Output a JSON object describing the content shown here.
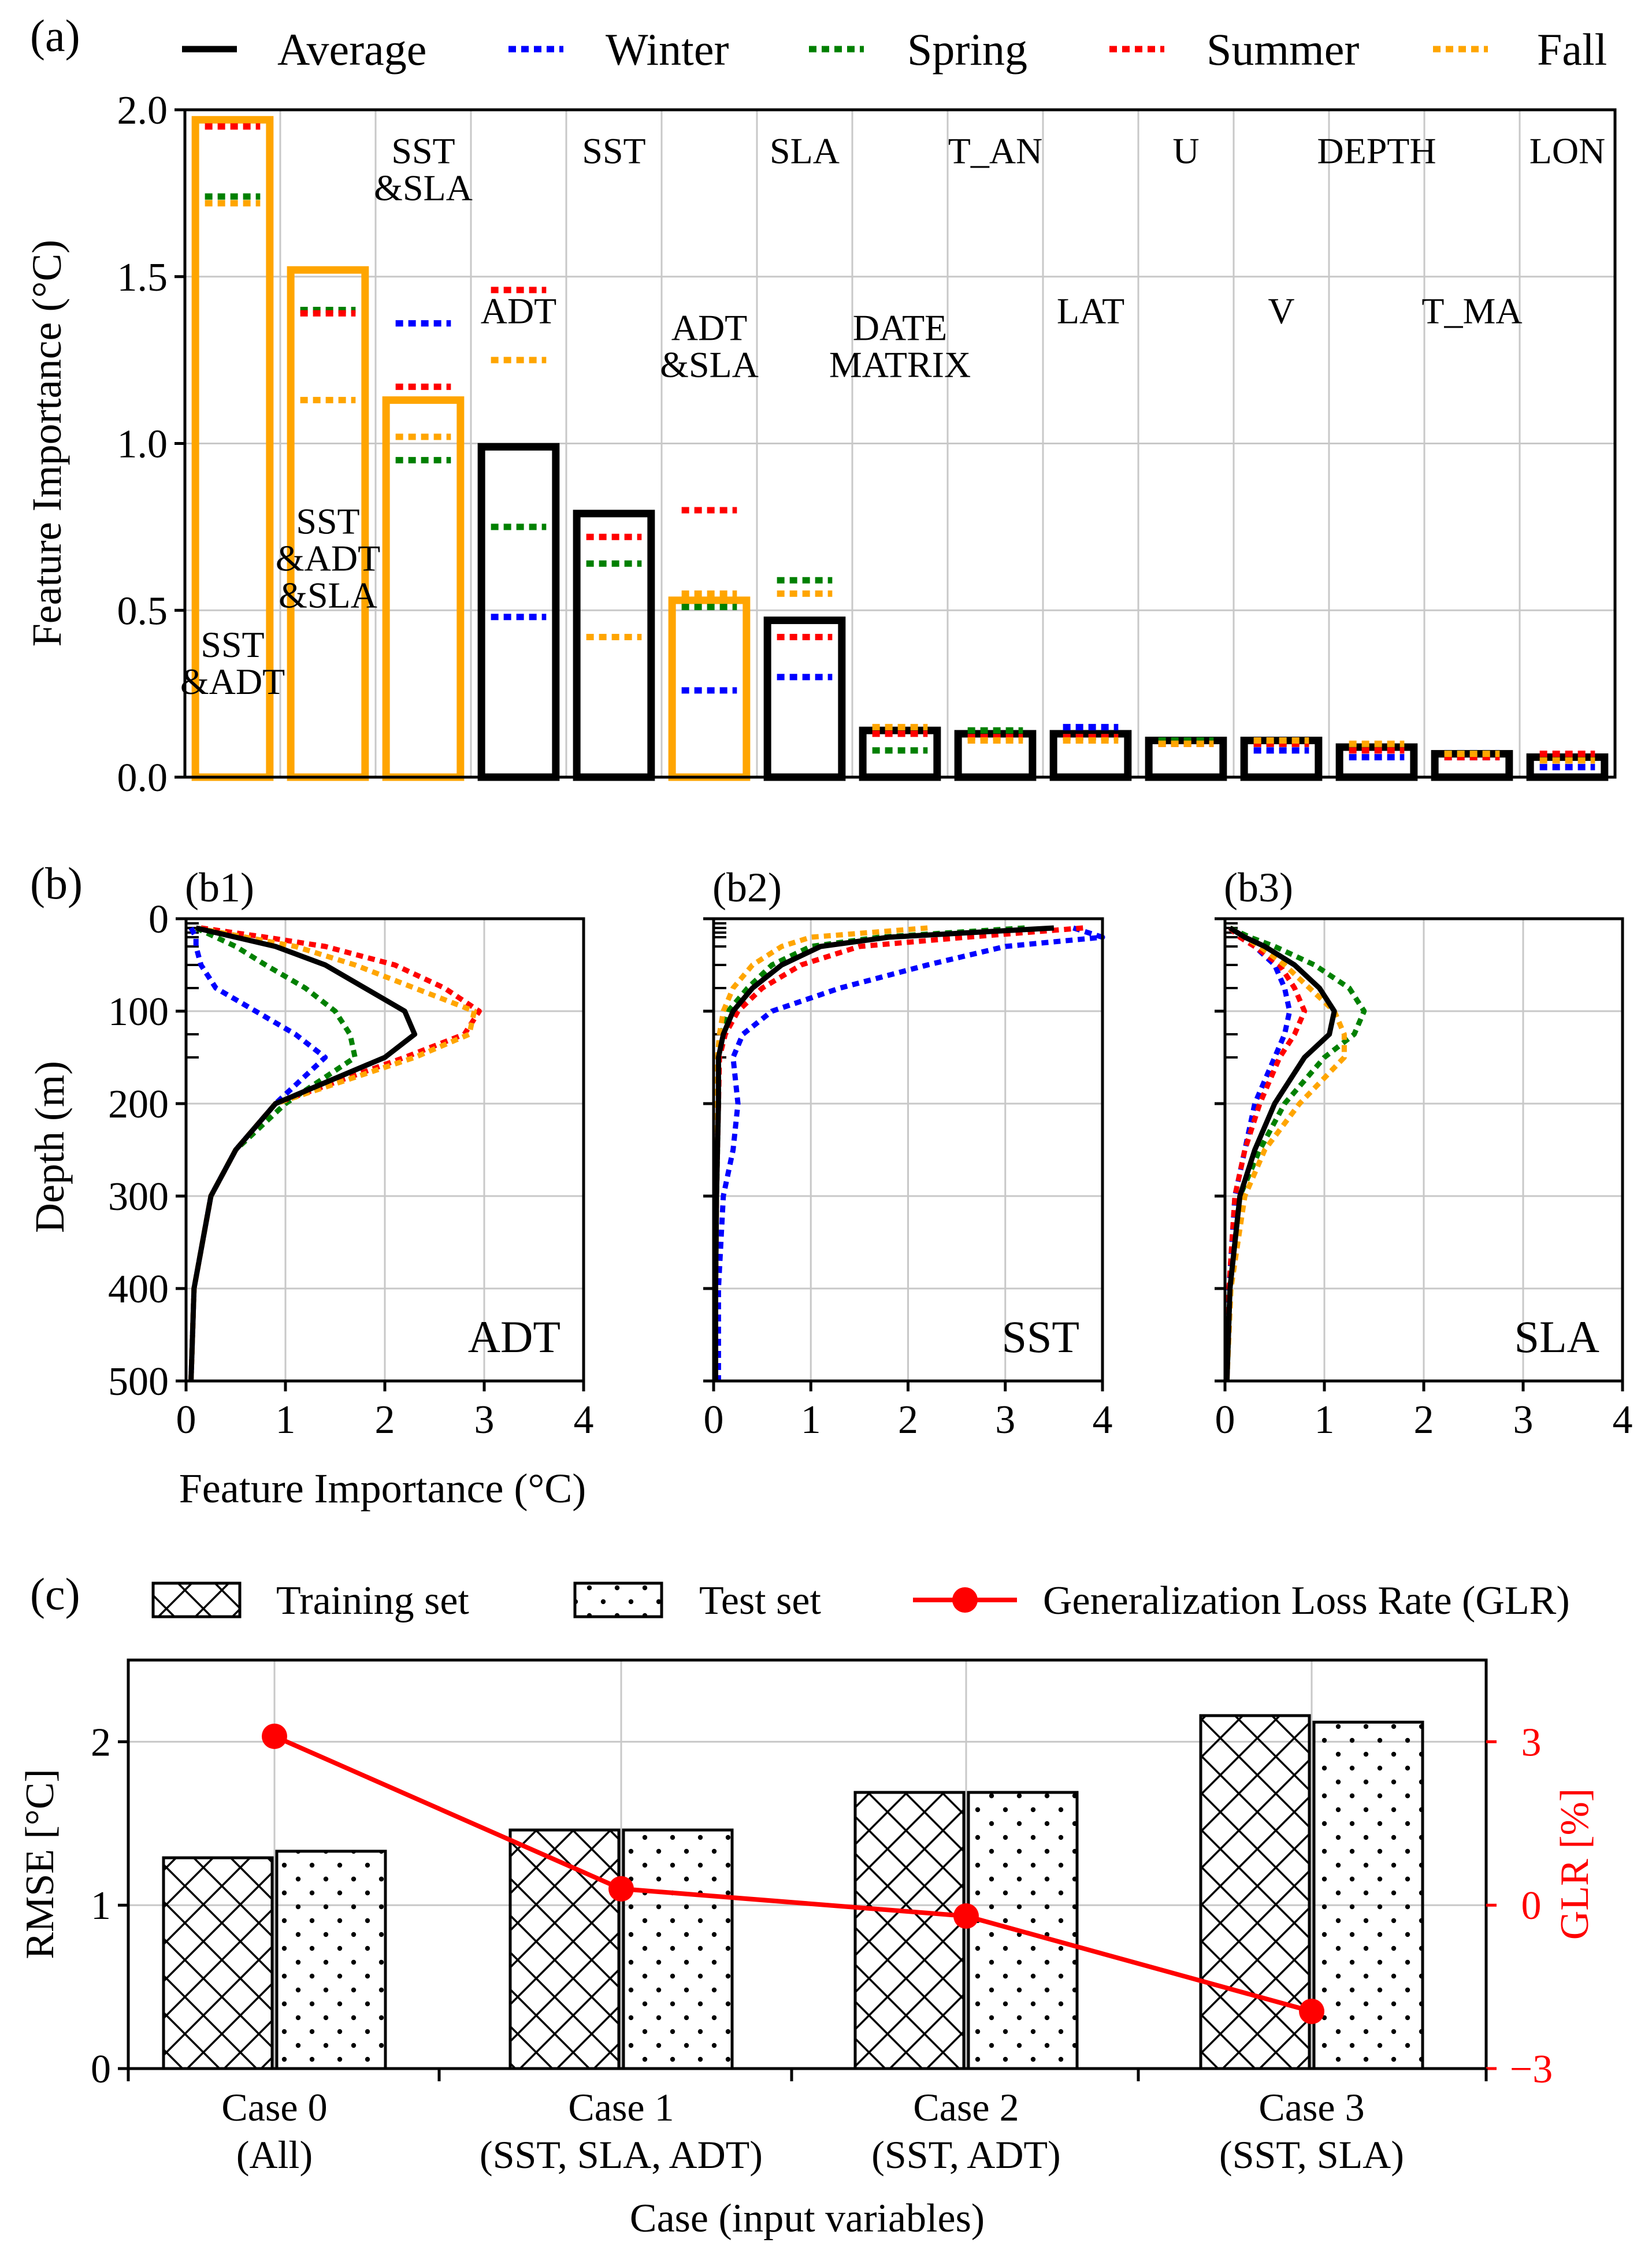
{
  "chart_data": [
    {
      "panel_label": "(a)",
      "type": "bar",
      "ylabel": "Feature Importance (°C)",
      "ylim": [
        0,
        2.0
      ],
      "yticks": [
        "0.0",
        "0.5",
        "1.0",
        "1.5",
        "2.0"
      ],
      "legend": {
        "placement": "top",
        "entries": [
          {
            "name": "Average",
            "color": "#000000",
            "style": "solid"
          },
          {
            "name": "Winter",
            "color": "#0000ff",
            "style": "dotted"
          },
          {
            "name": "Spring",
            "color": "#008000",
            "style": "dotted"
          },
          {
            "name": "Summer",
            "color": "#ff0000",
            "style": "dotted"
          },
          {
            "name": "Fall",
            "color": "#ffa500",
            "style": "dotted"
          }
        ]
      },
      "categories": [
        "SST &ADT",
        "SST &ADT &SLA",
        "SST &SLA",
        "ADT",
        "SST",
        "ADT &SLA",
        "SLA",
        "DATE MATRIX",
        "T_AN",
        "LAT",
        "U",
        "V",
        "DEPTH",
        "T_MA",
        "LON"
      ],
      "bar_edge_colors": [
        "#ffa500",
        "#ffa500",
        "#ffa500",
        "#000000",
        "#000000",
        "#ffa500",
        "#000000",
        "#000000",
        "#000000",
        "#000000",
        "#000000",
        "#000000",
        "#000000",
        "#000000",
        "#000000"
      ],
      "series": [
        {
          "name": "Average",
          "values": [
            1.97,
            1.52,
            1.13,
            0.99,
            0.79,
            0.53,
            0.47,
            0.14,
            0.13,
            0.13,
            0.11,
            0.11,
            0.09,
            0.07,
            0.06
          ]
        },
        {
          "name": "Winter",
          "values": [
            null,
            null,
            1.36,
            0.48,
            null,
            0.26,
            0.3,
            null,
            null,
            0.15,
            null,
            0.08,
            0.06,
            0.06,
            0.03
          ]
        },
        {
          "name": "Spring",
          "values": [
            1.74,
            1.4,
            0.95,
            0.75,
            0.64,
            0.51,
            0.59,
            0.08,
            0.14,
            0.12,
            0.11,
            0.1,
            0.09,
            0.07,
            null
          ]
        },
        {
          "name": "Summer",
          "values": [
            1.95,
            1.39,
            1.17,
            1.46,
            0.72,
            0.8,
            0.42,
            0.13,
            0.12,
            0.12,
            0.1,
            0.1,
            0.08,
            0.06,
            0.07
          ]
        },
        {
          "name": "Fall",
          "values": [
            1.72,
            1.13,
            1.02,
            1.25,
            0.42,
            0.55,
            0.55,
            0.15,
            0.11,
            0.11,
            0.1,
            0.11,
            0.1,
            0.07,
            0.05
          ]
        }
      ],
      "bar_annotations": [
        {
          "lines": [
            "SST",
            "&ADT"
          ],
          "bar": 0,
          "value": 0.36
        },
        {
          "lines": [
            "SST",
            "&ADT",
            "&SLA"
          ],
          "bar": 1,
          "value": 0.73
        },
        {
          "lines": [
            "SST",
            "&SLA"
          ],
          "bar": 2,
          "value": 1.84
        },
        {
          "lines": [
            "ADT"
          ],
          "bar": 3,
          "value": 1.36
        },
        {
          "lines": [
            "SST"
          ],
          "bar": 4,
          "value": 1.84
        },
        {
          "lines": [
            "ADT",
            "&SLA"
          ],
          "bar": 5,
          "value": 1.31
        },
        {
          "lines": [
            "SLA"
          ],
          "bar": 6,
          "value": 1.84
        },
        {
          "lines": [
            "DATE",
            "MATRIX"
          ],
          "bar": 7,
          "value": 1.31
        },
        {
          "lines": [
            "T_AN"
          ],
          "bar": 8,
          "value": 1.84
        },
        {
          "lines": [
            "LAT"
          ],
          "bar": 9,
          "value": 1.36
        },
        {
          "lines": [
            "U"
          ],
          "bar": 10,
          "value": 1.84
        },
        {
          "lines": [
            "V"
          ],
          "bar": 11,
          "value": 1.36
        },
        {
          "lines": [
            "DEPTH"
          ],
          "bar": 12,
          "value": 1.84
        },
        {
          "lines": [
            "T_MA"
          ],
          "bar": 13,
          "value": 1.36
        },
        {
          "lines": [
            "LON"
          ],
          "bar": 14,
          "value": 1.84
        }
      ]
    },
    {
      "panel_label": "(b)",
      "type": "line",
      "xlabel": "Feature Importance (°C)",
      "ylabel": "Depth (m)",
      "xlim": [
        0,
        4
      ],
      "ylim": [
        500,
        0
      ],
      "xticks": [
        0,
        1,
        2,
        3,
        4
      ],
      "yticks": [
        0,
        100,
        200,
        300,
        400,
        500
      ],
      "depths": [
        10,
        20,
        30,
        50,
        75,
        100,
        125,
        150,
        200,
        250,
        300,
        400,
        500
      ],
      "subplots": [
        {
          "label": "(b1)",
          "variable": "ADT",
          "series": [
            {
              "name": "Average",
              "values": [
                0.1,
                0.5,
                0.9,
                1.4,
                1.8,
                2.2,
                2.3,
                2.0,
                0.9,
                0.5,
                0.25,
                0.08,
                0.05
              ]
            },
            {
              "name": "Winter",
              "values": [
                0.05,
                0.1,
                0.1,
                0.15,
                0.3,
                0.7,
                1.1,
                1.4,
                0.9,
                0.5,
                0.25,
                0.08,
                0.05
              ]
            },
            {
              "name": "Spring",
              "values": [
                0.1,
                0.3,
                0.5,
                0.8,
                1.2,
                1.5,
                1.65,
                1.7,
                1.0,
                0.5,
                0.25,
                0.08,
                0.05
              ]
            },
            {
              "name": "Summer",
              "values": [
                0.15,
                0.8,
                1.4,
                2.1,
                2.6,
                2.95,
                2.8,
                2.2,
                0.9,
                0.5,
                0.25,
                0.08,
                0.05
              ]
            },
            {
              "name": "Fall",
              "values": [
                0.1,
                0.6,
                1.1,
                1.7,
                2.3,
                2.9,
                2.85,
                2.3,
                0.9,
                0.5,
                0.25,
                0.08,
                0.05
              ]
            }
          ]
        },
        {
          "label": "(b2)",
          "variable": "SST",
          "series": [
            {
              "name": "Average",
              "values": [
                3.5,
                1.8,
                1.1,
                0.7,
                0.4,
                0.2,
                0.1,
                0.05,
                0.05,
                0.04,
                0.03,
                0.02,
                0.02
              ]
            },
            {
              "name": "Winter",
              "values": [
                3.7,
                4.0,
                3.0,
                2.2,
                1.3,
                0.6,
                0.3,
                0.2,
                0.25,
                0.2,
                0.1,
                0.05,
                0.05
              ]
            },
            {
              "name": "Spring",
              "values": [
                3.2,
                1.7,
                1.0,
                0.6,
                0.35,
                0.15,
                0.08,
                0.05,
                0.05,
                0.04,
                0.03,
                0.02,
                0.02
              ]
            },
            {
              "name": "Summer",
              "values": [
                3.8,
                2.6,
                1.5,
                0.9,
                0.5,
                0.25,
                0.12,
                0.06,
                0.05,
                0.04,
                0.03,
                0.02,
                0.02
              ]
            },
            {
              "name": "Fall",
              "values": [
                2.2,
                1.0,
                0.7,
                0.4,
                0.2,
                0.1,
                0.06,
                0.04,
                0.04,
                0.03,
                0.03,
                0.02,
                0.02
              ]
            }
          ]
        },
        {
          "label": "(b3)",
          "variable": "SLA",
          "series": [
            {
              "name": "Average",
              "values": [
                0.05,
                0.2,
                0.4,
                0.7,
                0.95,
                1.1,
                1.05,
                0.8,
                0.5,
                0.3,
                0.15,
                0.05,
                0.02
              ]
            },
            {
              "name": "Winter",
              "values": [
                0.05,
                0.15,
                0.3,
                0.5,
                0.6,
                0.65,
                0.6,
                0.5,
                0.3,
                0.2,
                0.1,
                0.04,
                0.02
              ]
            },
            {
              "name": "Spring",
              "values": [
                0.05,
                0.25,
                0.5,
                0.9,
                1.25,
                1.4,
                1.3,
                1.0,
                0.6,
                0.35,
                0.15,
                0.05,
                0.02
              ]
            },
            {
              "name": "Summer",
              "values": [
                0.05,
                0.15,
                0.3,
                0.55,
                0.7,
                0.8,
                0.7,
                0.55,
                0.35,
                0.2,
                0.1,
                0.04,
                0.02
              ]
            },
            {
              "name": "Fall",
              "values": [
                0.05,
                0.2,
                0.35,
                0.6,
                0.85,
                1.1,
                1.2,
                1.2,
                0.75,
                0.4,
                0.2,
                0.06,
                0.02
              ]
            }
          ]
        }
      ]
    },
    {
      "panel_label": "(c)",
      "type": "bar",
      "xlabel": "Case (input variables)",
      "ylabel": "RMSE [°C]",
      "ylim": [
        0,
        2.5
      ],
      "yticks": [
        0,
        1,
        2
      ],
      "y2label": "GLR [%]",
      "y2lim": [
        -3,
        4.5
      ],
      "y2ticks": [
        "3",
        "0",
        "−3"
      ],
      "y2_color": "#ff0000",
      "legend": {
        "placement": "top",
        "entries": [
          "Training set",
          "Test set",
          "Generalization Loss Rate (GLR)"
        ]
      },
      "categories": [
        {
          "line1": "Case 0",
          "line2": "(All)"
        },
        {
          "line1": "Case 1",
          "line2": "(SST, SLA, ADT)"
        },
        {
          "line1": "Case 2",
          "line2": "(SST, ADT)"
        },
        {
          "line1": "Case 3",
          "line2": "(SST, SLA)"
        }
      ],
      "series": [
        {
          "name": "Training set",
          "values": [
            1.29,
            1.46,
            1.69,
            2.16
          ]
        },
        {
          "name": "Test set",
          "values": [
            1.33,
            1.46,
            1.69,
            2.12
          ]
        },
        {
          "name": "Generalization Loss Rate (GLR)",
          "axis": "right",
          "values": [
            3.1,
            0.3,
            -0.2,
            -1.95
          ]
        }
      ]
    }
  ]
}
